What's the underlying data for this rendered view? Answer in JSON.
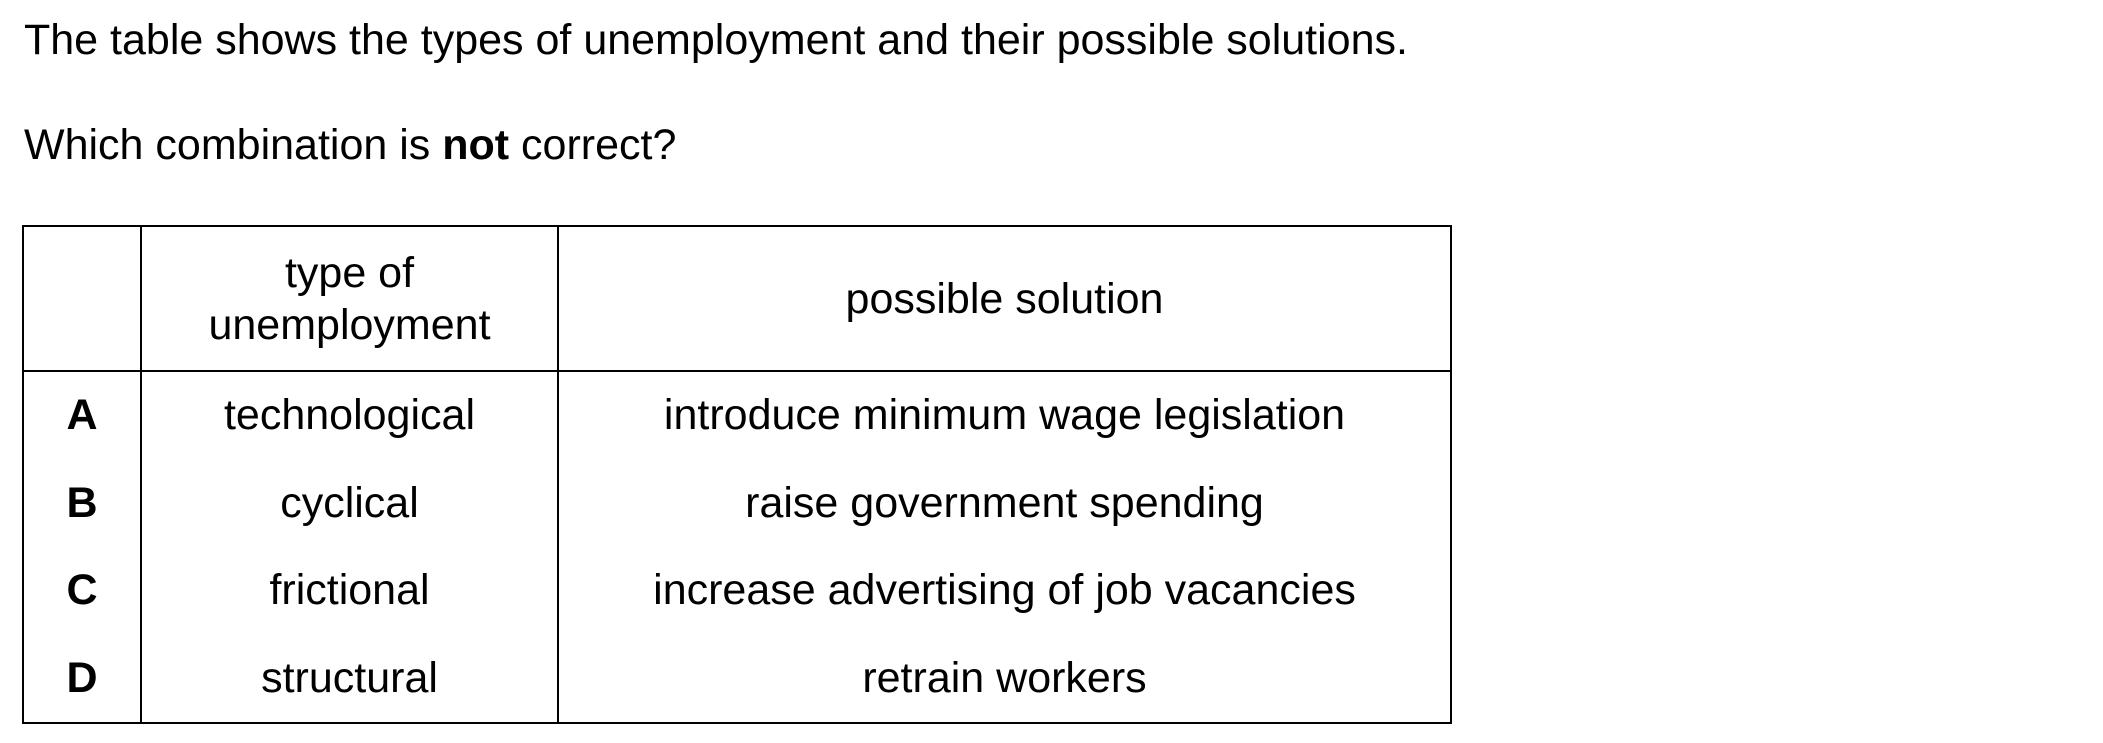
{
  "intro_text": "The table shows the types of unemployment and their possible solutions.",
  "question": {
    "before": "Which combination is ",
    "emphasis": "not",
    "after": " correct?"
  },
  "table": {
    "headers": {
      "letter": "",
      "type_line1": "type of",
      "type_line2": "unemployment",
      "solution": "possible solution"
    },
    "rows": [
      {
        "letter": "A",
        "type": "technological",
        "solution": "introduce minimum wage legislation"
      },
      {
        "letter": "B",
        "type": "cyclical",
        "solution": "raise government spending"
      },
      {
        "letter": "C",
        "type": "frictional",
        "solution": "increase advertising of job vacancies"
      },
      {
        "letter": "D",
        "type": "structural",
        "solution": "retrain workers"
      }
    ]
  }
}
